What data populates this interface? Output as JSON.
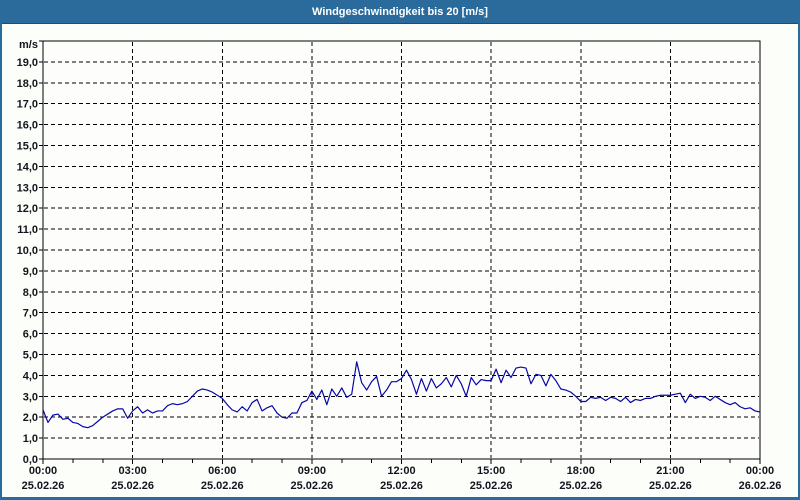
{
  "window": {
    "title": "Windgeschwindigkeit bis 20 [m/s]"
  },
  "colors": {
    "titlebar_bg": "#2B6B9C",
    "titlebar_border": "#1A4E78",
    "titlebar_text": "#FFFFFF",
    "window_border": "#2A6B9D",
    "window_bg": "#FCFEFA",
    "plot_bg": "#FDFEFB",
    "plot_border": "#000000",
    "grid": "#000000",
    "line": "#0808A8",
    "text": "#14141E"
  },
  "chart_data": {
    "type": "line",
    "title": "Windgeschwindigkeit bis 20 [m/s]",
    "ylabel": "m/s",
    "ylim": [
      0,
      20
    ],
    "y_tick_step": 1,
    "y_tick_labels": [
      "0,0",
      "1,0",
      "2,0",
      "3,0",
      "4,0",
      "5,0",
      "6,0",
      "7,0",
      "8,0",
      "9,0",
      "10,0",
      "11,0",
      "12,0",
      "13,0",
      "14,0",
      "15,0",
      "16,0",
      "17,0",
      "18,0",
      "19,0"
    ],
    "grid": "dashed; horizontal every 1 m/s, vertical every 3 h",
    "legend": "none",
    "x_axis": {
      "span_hours": 24,
      "minor_tick_hours": 1,
      "major_tick_hours": 3,
      "ticks": [
        {
          "time": "00:00",
          "date": "25.02.26"
        },
        {
          "time": "03:00",
          "date": "25.02.26"
        },
        {
          "time": "06:00",
          "date": "25.02.26"
        },
        {
          "time": "09:00",
          "date": "25.02.26"
        },
        {
          "time": "12:00",
          "date": "25.02.26"
        },
        {
          "time": "15:00",
          "date": "25.02.26"
        },
        {
          "time": "18:00",
          "date": "25.02.26"
        },
        {
          "time": "21:00",
          "date": "25.02.26"
        },
        {
          "time": "00:00",
          "date": "26.02.26"
        }
      ]
    },
    "series": [
      {
        "name": "Windgeschwindigkeit",
        "unit": "m/s",
        "sample_interval_minutes": 10,
        "start": "00:00",
        "values": [
          2.35,
          1.75,
          2.1,
          2.15,
          1.9,
          1.95,
          1.75,
          1.7,
          1.55,
          1.5,
          1.6,
          1.8,
          2.0,
          2.15,
          2.3,
          2.4,
          2.4,
          1.95,
          2.3,
          2.5,
          2.2,
          2.35,
          2.2,
          2.3,
          2.3,
          2.55,
          2.65,
          2.6,
          2.65,
          2.75,
          3.0,
          3.25,
          3.35,
          3.3,
          3.2,
          3.05,
          2.9,
          2.6,
          2.35,
          2.25,
          2.5,
          2.3,
          2.7,
          2.85,
          2.3,
          2.45,
          2.55,
          2.2,
          2.0,
          1.95,
          2.2,
          2.2,
          2.7,
          2.8,
          3.25,
          2.85,
          3.3,
          2.6,
          3.35,
          3.0,
          3.4,
          2.95,
          3.1,
          4.65,
          3.65,
          3.3,
          3.7,
          3.95,
          3.0,
          3.3,
          3.7,
          3.7,
          3.85,
          4.25,
          3.8,
          3.1,
          3.85,
          3.25,
          3.85,
          3.4,
          3.6,
          3.9,
          3.45,
          4.0,
          3.6,
          3.0,
          3.9,
          3.55,
          3.8,
          3.75,
          3.75,
          4.3,
          3.65,
          4.25,
          3.9,
          4.35,
          4.4,
          4.35,
          3.6,
          4.05,
          4.0,
          3.5,
          4.05,
          3.75,
          3.35,
          3.3,
          3.2,
          3.0,
          2.75,
          2.75,
          2.95,
          2.9,
          2.95,
          2.8,
          2.95,
          2.9,
          2.75,
          2.95,
          2.7,
          2.85,
          2.8,
          2.9,
          2.9,
          3.0,
          3.05,
          3.05,
          3.05,
          3.1,
          3.15,
          2.7,
          3.1,
          2.9,
          3.0,
          2.95,
          2.8,
          3.0,
          2.85,
          2.7,
          2.6,
          2.7,
          2.5,
          2.4,
          2.45,
          2.3,
          2.25
        ]
      }
    ]
  }
}
